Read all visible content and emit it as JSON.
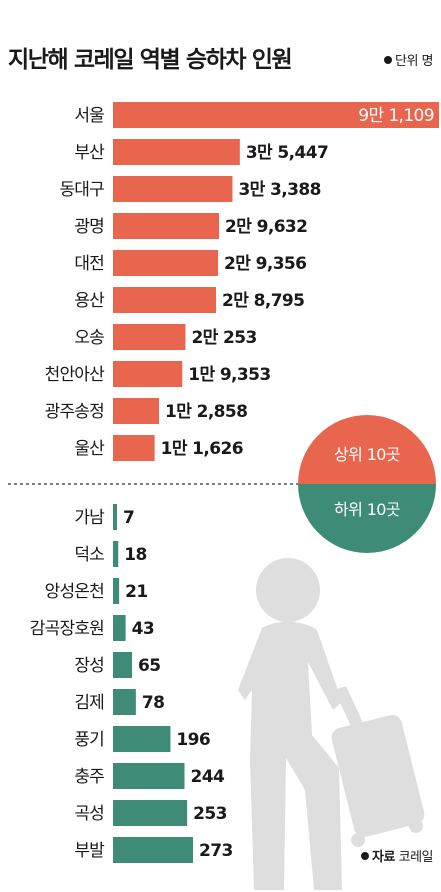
{
  "title": "지난해 코레일 역별 승하차 인원",
  "unit": "단위 명",
  "source_label": "자료",
  "source_name": "코레일",
  "colors": {
    "top_bar": "#e8654e",
    "bottom_bar": "#3e8b78",
    "divider": "#555555",
    "silhouette": "#dedede"
  },
  "icons": [
    "traveler-with-suitcase-icon"
  ],
  "chart_data": {
    "type": "bar",
    "orientation": "horizontal",
    "groups": [
      {
        "name": "상위 10곳",
        "categories": [
          "서울",
          "부산",
          "동대구",
          "광명",
          "대전",
          "용산",
          "오송",
          "천안아산",
          "광주송정",
          "울산"
        ],
        "values": [
          91109,
          35447,
          33388,
          29632,
          29356,
          28795,
          20253,
          19353,
          12858,
          11626
        ],
        "labels": [
          "9만 1,109",
          "3만 5,447",
          "3만 3,388",
          "2만 9,632",
          "2만 9,356",
          "2만 8,795",
          "2만 253",
          "1만 9,353",
          "1만 2,858",
          "1만 1,626"
        ]
      },
      {
        "name": "하위 10곳",
        "categories": [
          "가남",
          "덕소",
          "앙성온천",
          "감곡장호원",
          "장성",
          "김제",
          "풍기",
          "충주",
          "곡성",
          "부발"
        ],
        "values": [
          7,
          18,
          21,
          43,
          65,
          78,
          196,
          244,
          253,
          273
        ],
        "labels": [
          "7",
          "18",
          "21",
          "43",
          "65",
          "78",
          "196",
          "244",
          "253",
          "273"
        ]
      }
    ]
  }
}
